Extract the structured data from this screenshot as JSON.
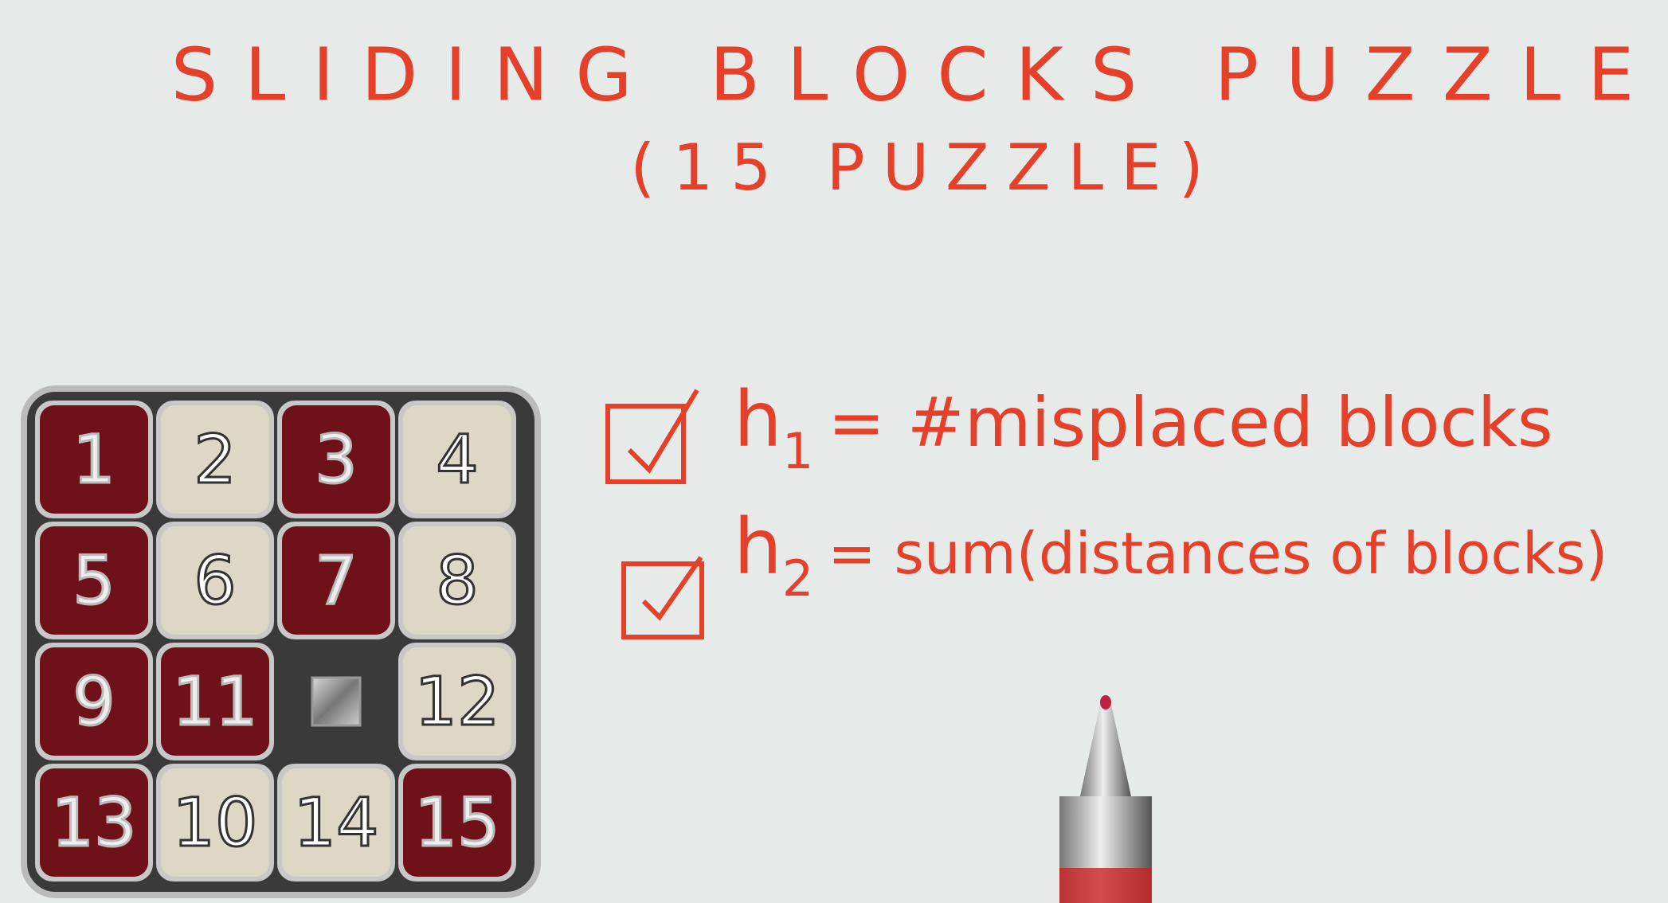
{
  "header": {
    "title": "SLIDING BLOCKS PUZZLE",
    "subtitle": "(15 PUZZLE)"
  },
  "heuristics": [
    {
      "symbol": "h",
      "subscript": "1",
      "text": "= #misplaced blocks"
    },
    {
      "symbol": "h",
      "subscript": "2",
      "text": "= sum(distances of blocks)"
    }
  ],
  "puzzle": {
    "rows": [
      [
        {
          "label": "1",
          "color": "#6e1119"
        },
        {
          "label": "2",
          "color": "#ddd8c6"
        },
        {
          "label": "3",
          "color": "#6e1119"
        },
        {
          "label": "4",
          "color": "#ddd8c6"
        }
      ],
      [
        {
          "label": "5",
          "color": "#6e1119"
        },
        {
          "label": "6",
          "color": "#ddd8c6"
        },
        {
          "label": "7",
          "color": "#6e1119"
        },
        {
          "label": "8",
          "color": "#ddd8c6"
        }
      ],
      [
        {
          "label": "9",
          "color": "#6e1119"
        },
        {
          "label": "11",
          "color": "#6e1119"
        },
        null,
        {
          "label": "12",
          "color": "#ddd8c6"
        }
      ],
      [
        {
          "label": "13",
          "color": "#6e1119"
        },
        {
          "label": "10",
          "color": "#ddd8c6"
        },
        {
          "label": "14",
          "color": "#ddd8c6"
        },
        {
          "label": "15",
          "color": "#6e1119"
        }
      ]
    ]
  }
}
